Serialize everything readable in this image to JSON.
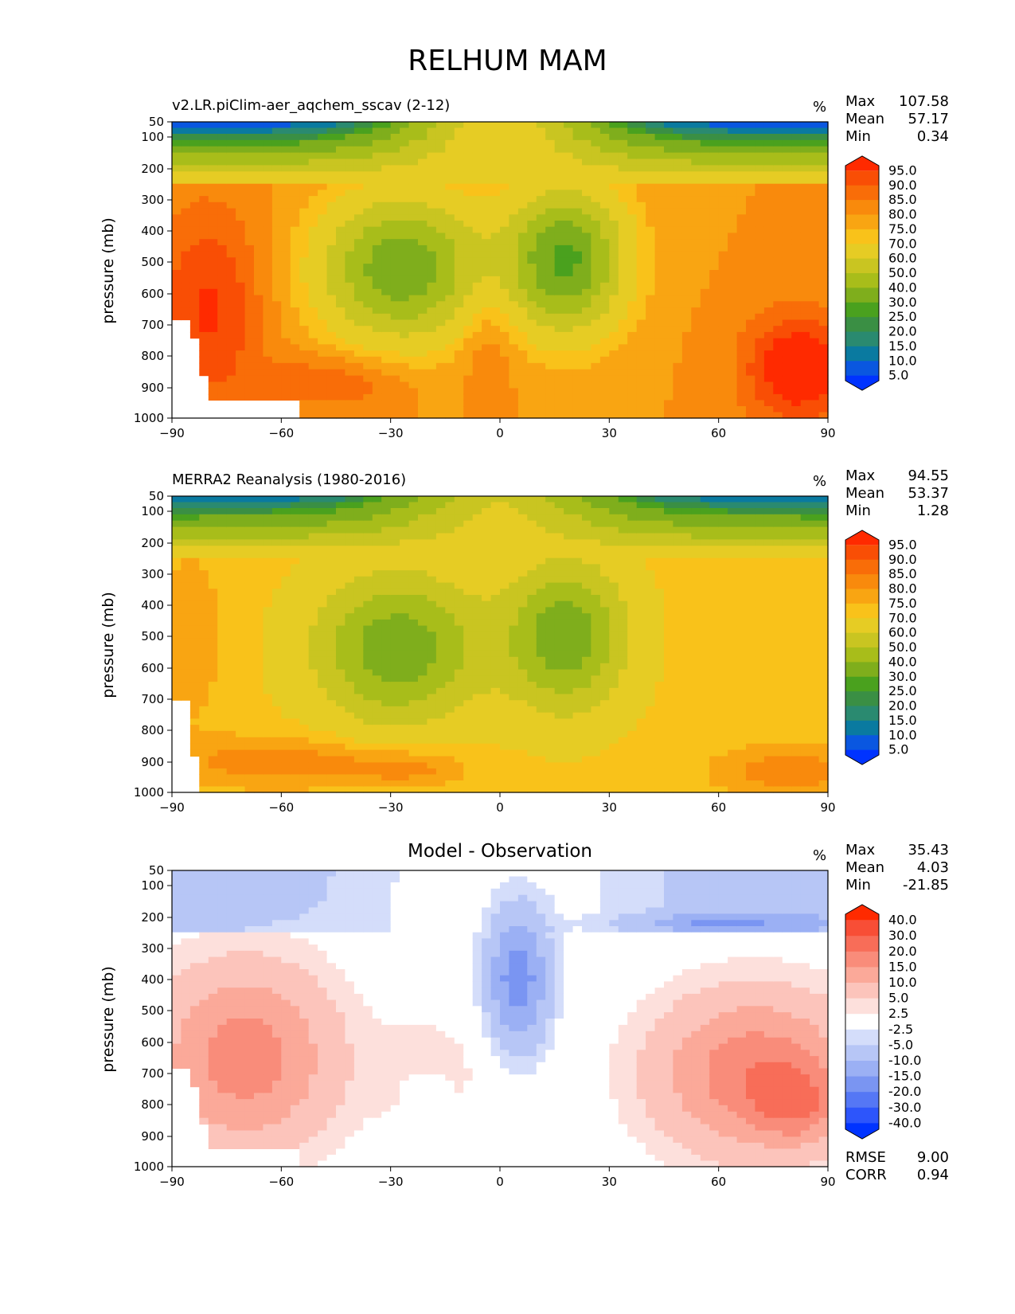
{
  "title": "RELHUM MAM",
  "chart_data": [
    {
      "type": "heatmap",
      "title": "v2.LR.piClim-aer_aqchem_sscav (2-12)",
      "units": "%",
      "xlabel": "",
      "ylabel": "pressure (mb)",
      "xlim": [
        -90,
        90
      ],
      "ylim": [
        1000,
        50
      ],
      "x_ticks": [
        "−90",
        "−60",
        "−30",
        "0",
        "30",
        "60",
        "90"
      ],
      "y_ticks": [
        "50",
        "100",
        "200",
        "300",
        "400",
        "500",
        "600",
        "700",
        "800",
        "900",
        "1000"
      ],
      "stats": {
        "max_label": "Max",
        "max": "107.58",
        "mean_label": "Mean",
        "mean": "57.17",
        "min_label": "Min",
        "min": "0.34"
      },
      "colorbar_levels": [
        "95.0",
        "90.0",
        "85.0",
        "80.0",
        "75.0",
        "70.0",
        "60.0",
        "50.0",
        "40.0",
        "30.0",
        "25.0",
        "20.0",
        "15.0",
        "10.0",
        "5.0"
      ],
      "colormap": "wet",
      "field_id": "model"
    },
    {
      "type": "heatmap",
      "title": "MERRA2 Reanalysis (1980-2016)",
      "units": "%",
      "xlabel": "",
      "ylabel": "pressure (mb)",
      "xlim": [
        -90,
        90
      ],
      "ylim": [
        1000,
        50
      ],
      "x_ticks": [
        "−90",
        "−60",
        "−30",
        "0",
        "30",
        "60",
        "90"
      ],
      "y_ticks": [
        "50",
        "100",
        "200",
        "300",
        "400",
        "500",
        "600",
        "700",
        "800",
        "900",
        "1000"
      ],
      "stats": {
        "max_label": "Max",
        "max": "94.55",
        "mean_label": "Mean",
        "mean": "53.37",
        "min_label": "Min",
        "min": "1.28"
      },
      "colorbar_levels": [
        "95.0",
        "90.0",
        "85.0",
        "80.0",
        "75.0",
        "70.0",
        "60.0",
        "50.0",
        "40.0",
        "30.0",
        "25.0",
        "20.0",
        "15.0",
        "10.0",
        "5.0"
      ],
      "colormap": "wet",
      "field_id": "obs"
    },
    {
      "type": "heatmap",
      "title": "Model - Observation",
      "units": "%",
      "xlabel": "",
      "ylabel": "pressure (mb)",
      "xlim": [
        -90,
        90
      ],
      "ylim": [
        1000,
        50
      ],
      "x_ticks": [
        "−90",
        "−60",
        "−30",
        "0",
        "30",
        "60",
        "90"
      ],
      "y_ticks": [
        "50",
        "100",
        "200",
        "300",
        "400",
        "500",
        "600",
        "700",
        "800",
        "900",
        "1000"
      ],
      "stats": {
        "max_label": "Max",
        "max": "35.43",
        "mean_label": "Mean",
        "mean": "4.03",
        "min_label": "Min",
        "min": "-21.85"
      },
      "colorbar_levels": [
        "40.0",
        "30.0",
        "20.0",
        "15.0",
        "10.0",
        "5.0",
        "2.5",
        "-2.5",
        "-5.0",
        "-10.0",
        "-15.0",
        "-20.0",
        "-30.0",
        "-40.0"
      ],
      "colormap": "diff",
      "field_id": "diff",
      "metrics": {
        "rmse_label": "RMSE",
        "rmse": "9.00",
        "corr_label": "CORR",
        "corr": "0.94"
      }
    }
  ],
  "colors": {
    "wet": [
      "#0033ff",
      "#0a57e0",
      "#0a7aa0",
      "#2a8a70",
      "#3a8f44",
      "#4aa11e",
      "#7fae1c",
      "#a8bd1a",
      "#c9c521",
      "#e6cc24",
      "#f9c21a",
      "#f9a512",
      "#f98a0c",
      "#f96d08",
      "#f94e05",
      "#ff2a00"
    ],
    "diff": [
      "#0033ff",
      "#2d55fb",
      "#5577f5",
      "#7a95f2",
      "#9bb0f4",
      "#b7c6f6",
      "#d4ddfa",
      "#ffffff",
      "#fde0dc",
      "#fcc4bb",
      "#fba999",
      "#f98c7a",
      "#f86d58",
      "#f84e36",
      "#ff2a00"
    ]
  }
}
